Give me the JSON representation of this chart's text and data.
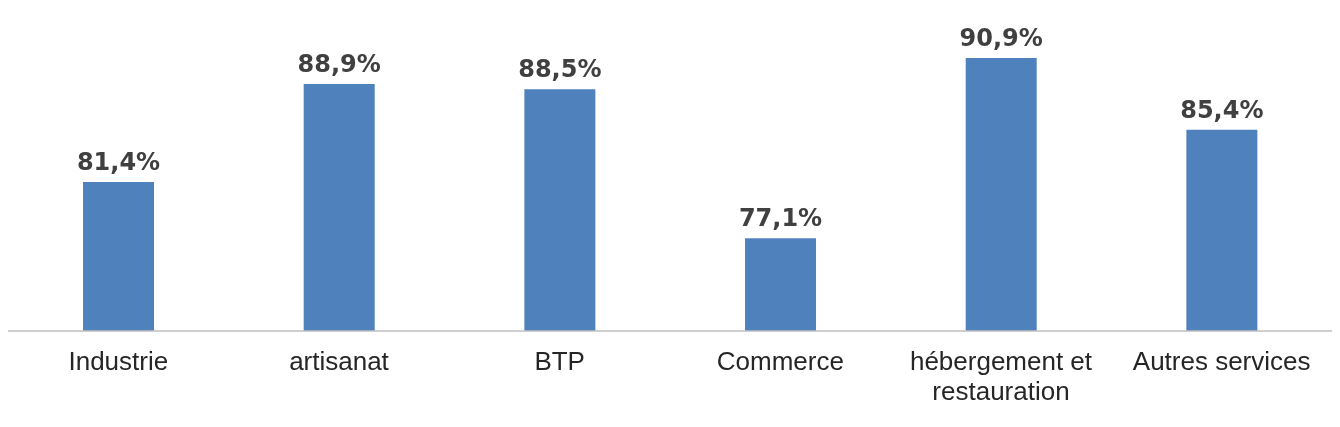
{
  "chart_data": {
    "type": "bar",
    "categories": [
      "Industrie",
      "artisanat",
      "BTP",
      "Commerce",
      "hébergement et restauration",
      "Autres services"
    ],
    "values": [
      81.4,
      88.9,
      88.5,
      77.1,
      90.9,
      85.4
    ],
    "value_labels": [
      "81,4%",
      "88,9%",
      "88,5%",
      "77,1%",
      "90,9%",
      "85,4%"
    ],
    "color": "#4f81bd",
    "ylim": [
      70,
      90.9
    ],
    "grid": false,
    "legend": false
  }
}
